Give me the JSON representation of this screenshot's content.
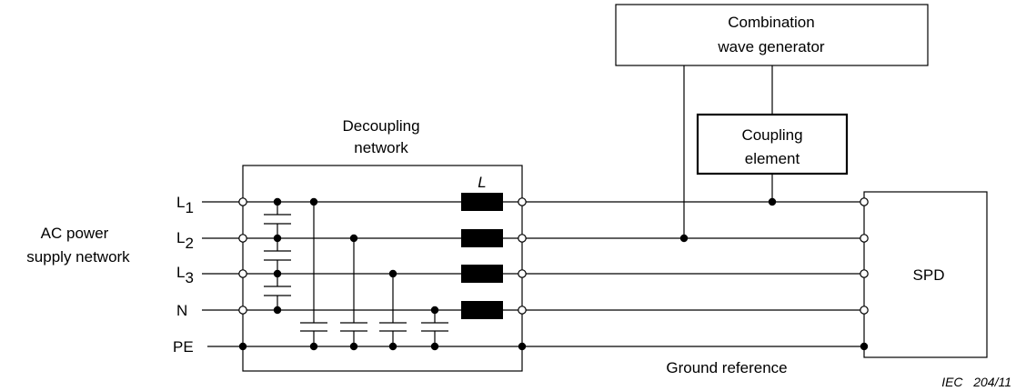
{
  "labels": {
    "generator_line1": "Combination",
    "generator_line2": "wave generator",
    "coupling_line1": "Coupling",
    "coupling_line2": "element",
    "decoupling_line1": "Decoupling",
    "decoupling_line2": "network",
    "inductor": "L",
    "ac_line1": "AC power",
    "ac_line2": "supply network",
    "spd": "SPD",
    "ground": "Ground reference",
    "footer": "IEC   204/11"
  },
  "lines": [
    {
      "name": "L",
      "sub": "1"
    },
    {
      "name": "L",
      "sub": "2"
    },
    {
      "name": "L",
      "sub": "3"
    },
    {
      "name": "N",
      "sub": ""
    },
    {
      "name": "PE",
      "sub": ""
    }
  ]
}
